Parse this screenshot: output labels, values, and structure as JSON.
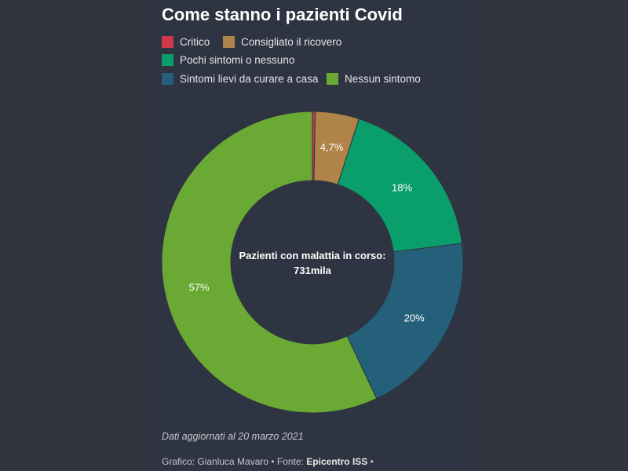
{
  "header": {
    "title": "Come stanno i pazienti Covid"
  },
  "chart_data": {
    "type": "pie",
    "categories": [
      "Critico",
      "Consigliato il ricovero",
      "Pochi sintomi o nessuno",
      "Sintomi lievi da curare a casa",
      "Nessun sintomo"
    ],
    "values": [
      0.3,
      4.7,
      18,
      20,
      57
    ],
    "value_labels": [
      "",
      "4,7%",
      "18%",
      "20%",
      "57%"
    ],
    "colors": [
      "#d0384a",
      "#b08449",
      "#0a9e6a",
      "#24607a",
      "#6aa934"
    ],
    "center_label_line1": "Pazienti con malattia in corso:",
    "center_label_line2": "731mila",
    "legend_placement": "top-left"
  },
  "footer": {
    "note": "Dati aggiornati al 20 marzo 2021",
    "credit_prefix": "Grafico: Gianluca Mavaro • Fonte:",
    "credit_source": "Epicentro ISS",
    "credit_suffix": "•"
  }
}
